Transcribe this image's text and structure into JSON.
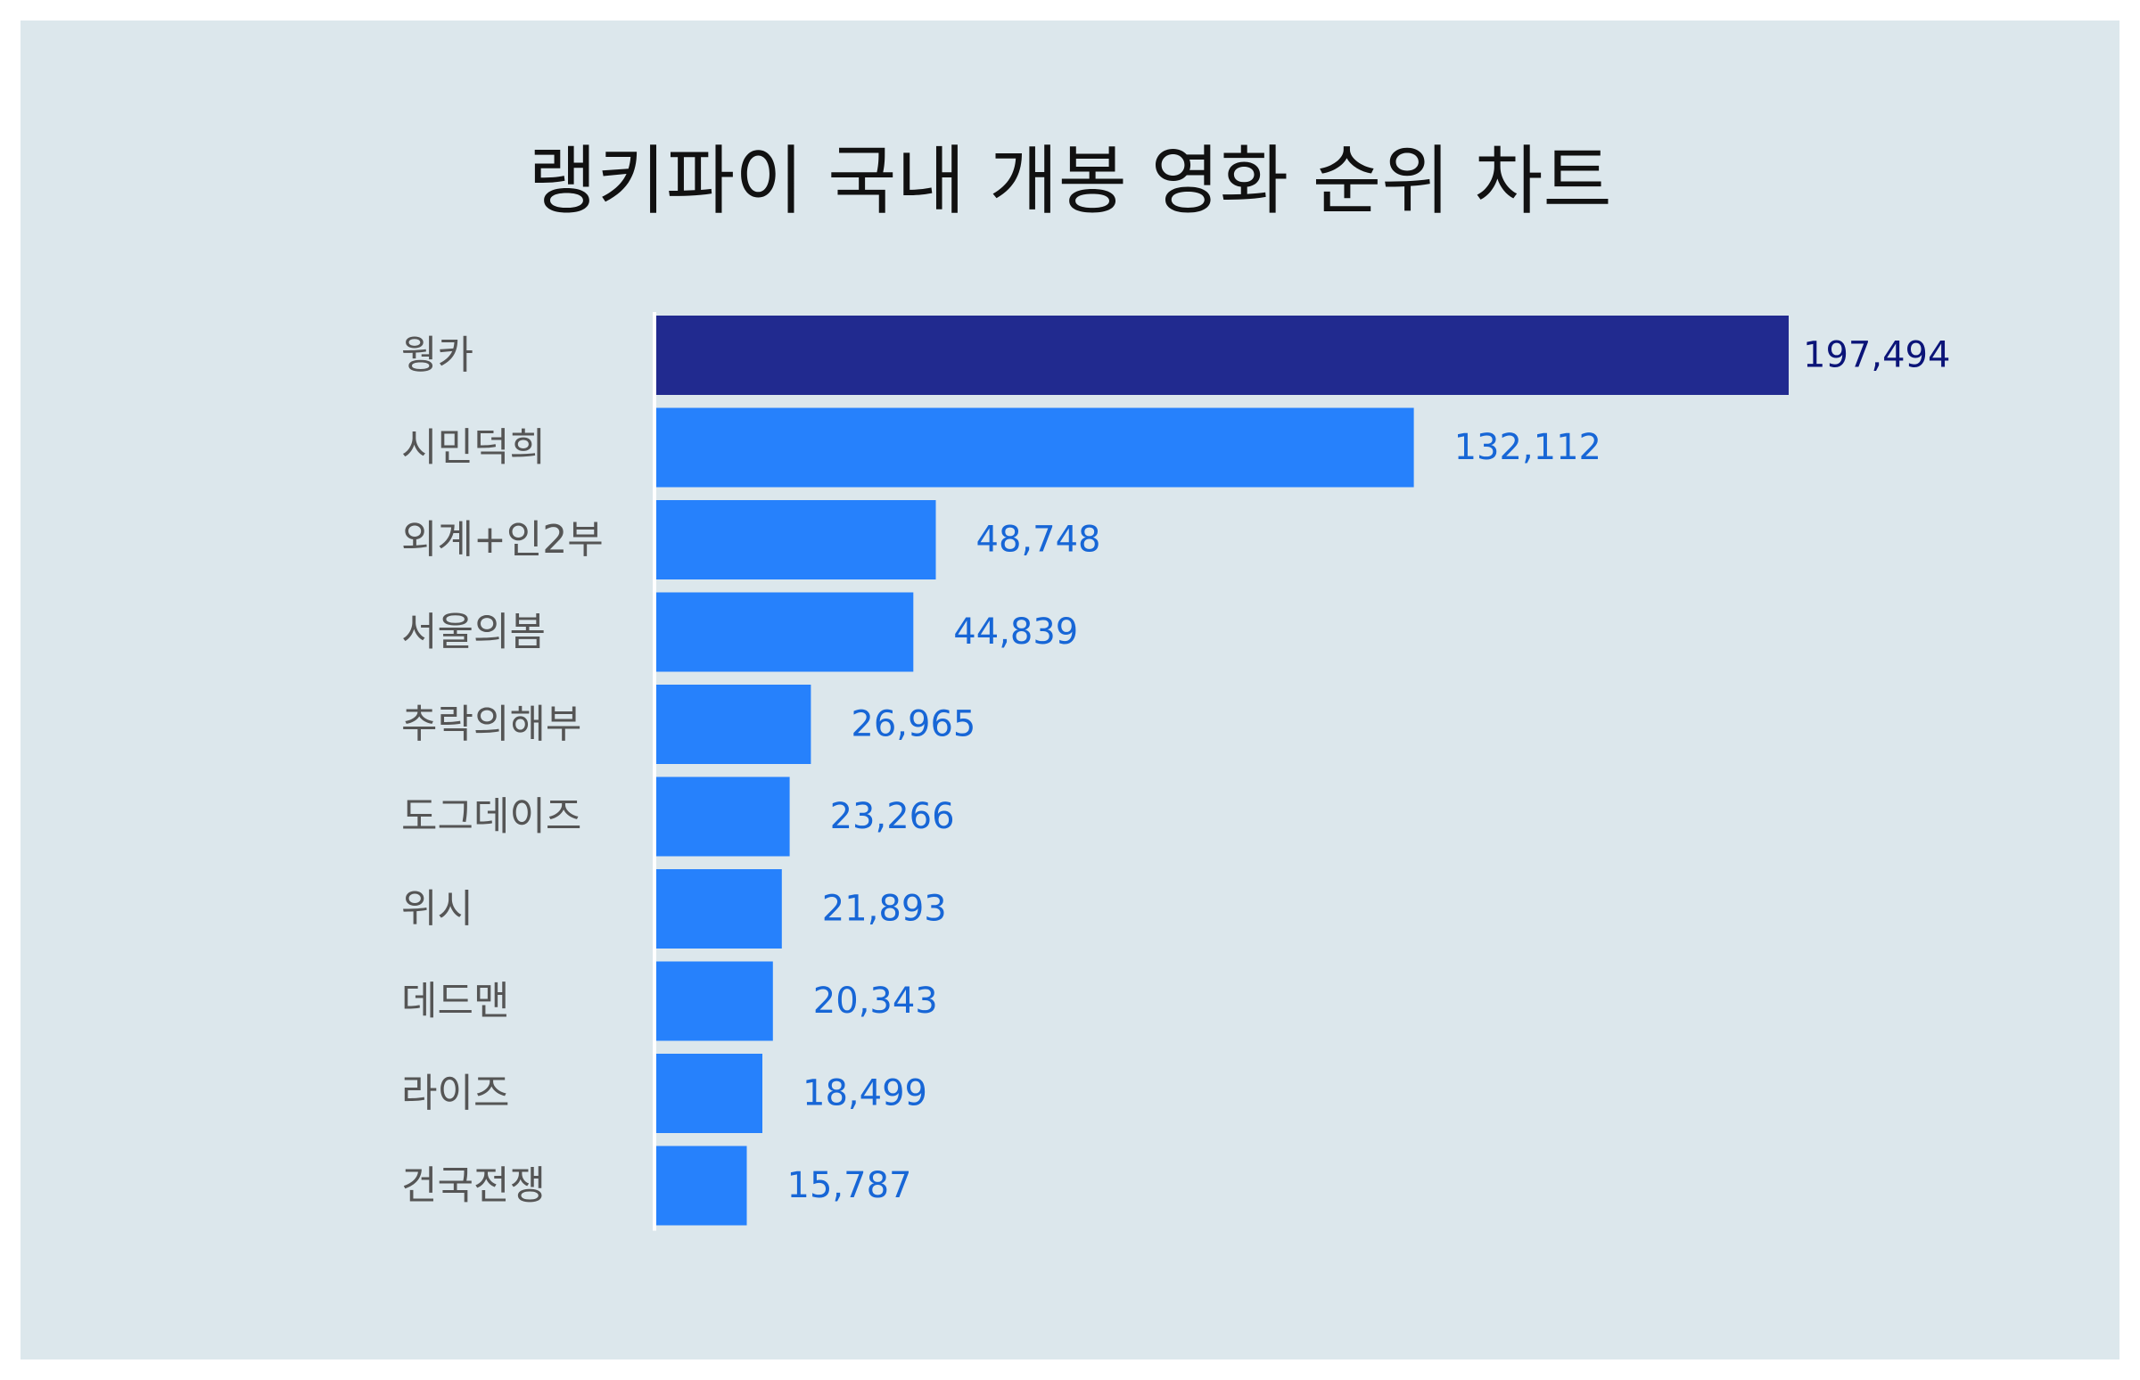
{
  "chart_data": {
    "type": "bar",
    "orientation": "horizontal",
    "title": "랭키파이 국내 개봉 영화 순위 차트",
    "categories": [
      "웡카",
      "시민덕희",
      "외계+인2부",
      "서울의봄",
      "추락의해부",
      "도그데이즈",
      "위시",
      "데드맨",
      "라이즈",
      "건국전쟁"
    ],
    "values": [
      197494,
      132112,
      48748,
      44839,
      26965,
      23266,
      21893,
      20343,
      18499,
      15787
    ],
    "value_labels": [
      "197,494",
      "132,112",
      "48,748",
      "44,839",
      "26,965",
      "23,266",
      "21,893",
      "20,343",
      "18,499",
      "15,787"
    ],
    "xlabel": "",
    "ylabel": "",
    "grid": false,
    "legend": "none",
    "colors": {
      "highlight_bar": "#212a8f",
      "bar": "#2681fc",
      "highlight_label": "#0b1478",
      "label": "#1766d6",
      "axis_line": "#ffffff",
      "background": "#dce7ec"
    }
  }
}
